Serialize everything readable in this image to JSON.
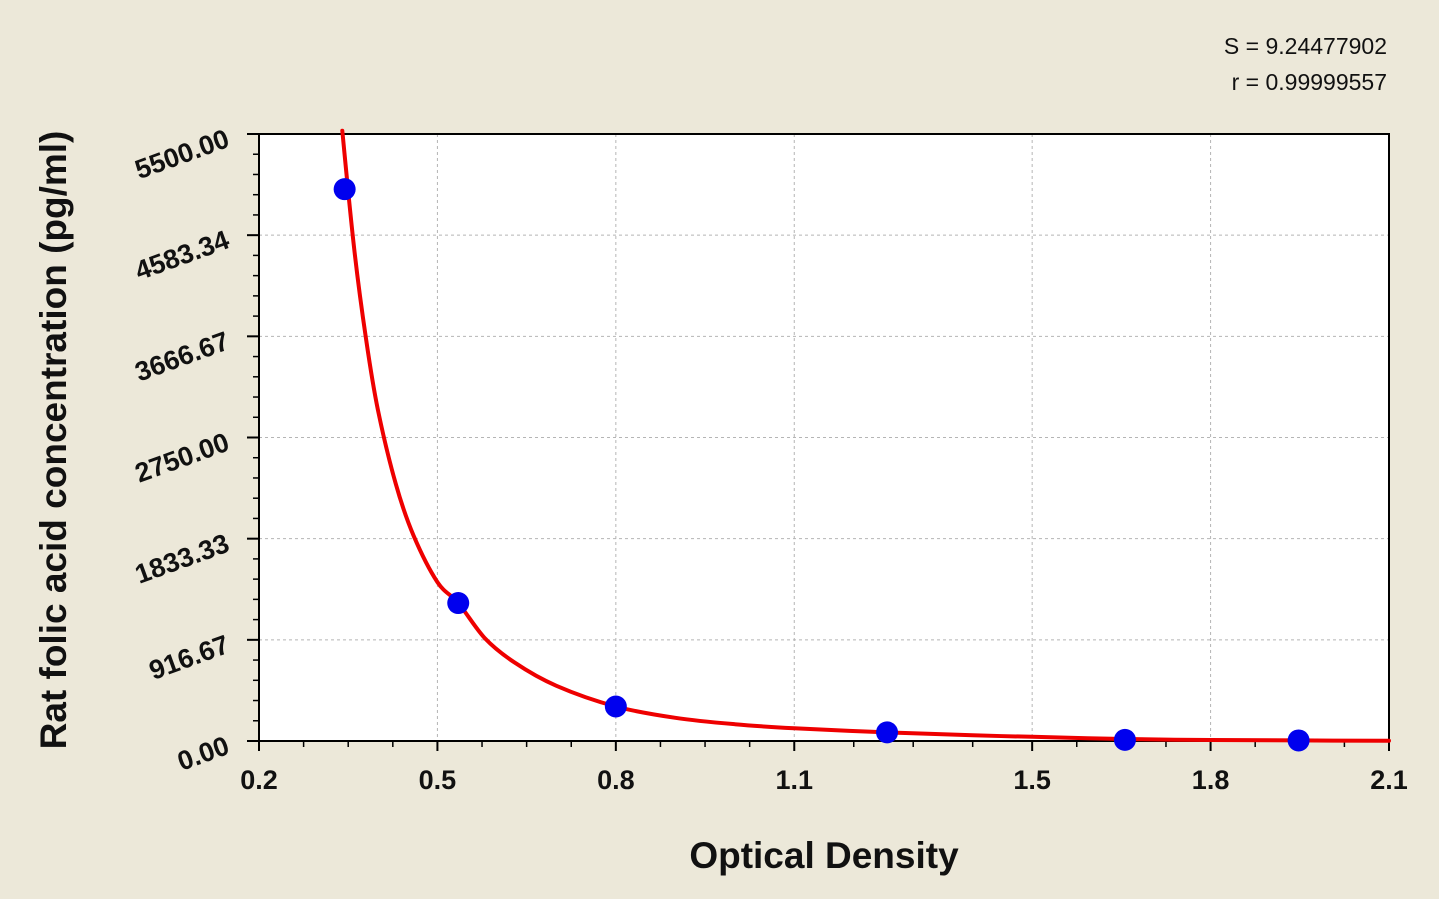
{
  "chart_data": {
    "type": "scatter",
    "title": "",
    "xlabel": "Optical Density",
    "ylabel": "Rat folic acid concentration (pg/ml)",
    "xlim": [
      0.2,
      2.1
    ],
    "ylim": [
      0,
      5500
    ],
    "x_ticks": [
      "0.2",
      "0.5",
      "0.8",
      "1.1",
      "1.5",
      "1.8",
      "2.1"
    ],
    "x_tick_values": [
      0.2,
      0.5,
      0.8,
      1.1,
      1.5,
      1.8,
      2.1
    ],
    "y_ticks": [
      "0.00",
      "916.67",
      "1833.33",
      "2750.00",
      "3666.67",
      "4583.34",
      "5500.00"
    ],
    "y_tick_values": [
      0,
      916.67,
      1833.33,
      2750,
      3666.67,
      4583.34,
      5500
    ],
    "grid": true,
    "series": [
      {
        "kind": "points",
        "color": "#0000ee",
        "x": [
          0.344,
          0.535,
          0.8,
          1.256,
          1.656,
          1.948
        ],
        "y": [
          5000,
          1250,
          312.5,
          78.1,
          10,
          5
        ]
      },
      {
        "kind": "fit-curve",
        "color": "#ee0000",
        "x": [
          0.34,
          0.36,
          0.38,
          0.4,
          0.43,
          0.46,
          0.5,
          0.535,
          0.58,
          0.63,
          0.7,
          0.8,
          0.9,
          1.0,
          1.1,
          1.256,
          1.4,
          1.5,
          1.656,
          1.8,
          1.948,
          2.1
        ],
        "y": [
          5530,
          4460,
          3640,
          3000,
          2330,
          1860,
          1440,
          1250,
          930,
          710,
          500,
          312.5,
          210,
          152,
          115,
          78.1,
          52,
          38,
          18,
          9,
          5,
          2
        ]
      }
    ],
    "annotations": [
      "S = 9.24477902",
      "r = 0.99999557"
    ]
  }
}
